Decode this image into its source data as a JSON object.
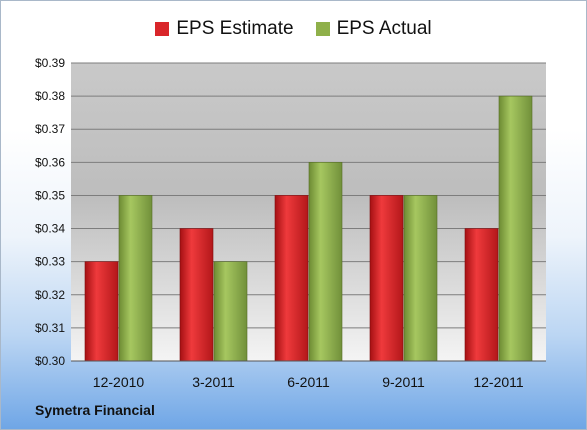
{
  "chart_data": {
    "type": "bar",
    "categories": [
      "12-2010",
      "3-2011",
      "6-2011",
      "9-2011",
      "12-2011"
    ],
    "series": [
      {
        "name": "EPS Estimate",
        "values": [
          0.33,
          0.34,
          0.35,
          0.35,
          0.34
        ],
        "color": "#d9262a"
      },
      {
        "name": "EPS Actual",
        "values": [
          0.35,
          0.33,
          0.36,
          0.35,
          0.38
        ],
        "color": "#8fb04a"
      }
    ],
    "ylim": [
      0.3,
      0.39
    ],
    "yticks": [
      "$0.30",
      "$0.31",
      "$0.32",
      "$0.33",
      "$0.34",
      "$0.35",
      "$0.36",
      "$0.37",
      "$0.38",
      "$0.39"
    ],
    "grid": true,
    "legend_position": "top-center"
  },
  "footer": {
    "company": "Symetra Financial"
  }
}
